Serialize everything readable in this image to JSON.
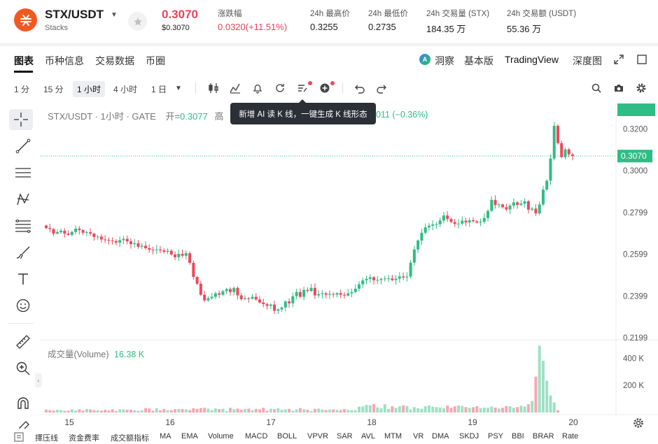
{
  "header": {
    "logo_icon": "stacks-logo-icon",
    "pair": "STX/USDT",
    "pair_sub": "Stacks",
    "price": "0.3070",
    "price_usd": "$0.3070",
    "stats": [
      {
        "label": "涨跌幅",
        "value": "0.0320(+11.51%)",
        "red": true
      },
      {
        "label": "24h 最高价",
        "value": "0.3255"
      },
      {
        "label": "24h 最低价",
        "value": "0.2735"
      },
      {
        "label": "24h 交易量 (STX)",
        "value": "184.35 万"
      },
      {
        "label": "24h 交易额 (USDT)",
        "value": "55.36 万"
      }
    ]
  },
  "tabs": {
    "left": [
      "图表",
      "币种信息",
      "交易数据",
      "币圈"
    ],
    "active": "图表",
    "right": [
      {
        "label": "洞察",
        "icon": "ai-icon"
      },
      {
        "label": "基本版"
      },
      {
        "label": "TradingView"
      },
      {
        "label": "深度图"
      }
    ]
  },
  "toolbar": {
    "timeframes": [
      "1 分",
      "15 分",
      "1 小时",
      "4 小时",
      "1 日"
    ],
    "active_tf": "1 小时"
  },
  "chart": {
    "legend_pair": "STX/USDT · 1小时 · GATE",
    "legend_open_label": "开=",
    "legend_open_value": "0.3077",
    "legend_high_label": "高",
    "legend_change": "011 (−0.36%)",
    "tooltip": "新增 AI 读 K 线，一键生成 K 线形态",
    "current_price": "0.3070",
    "volume_legend_label": "成交量(Volume)",
    "volume_legend_value": "16.38 K",
    "volume_current": "16.38 K",
    "price_ticks": [
      "0.3200",
      "0.3000",
      "0.2799",
      "0.2599",
      "0.2399",
      "0.2199"
    ],
    "volume_ticks": [
      "400 K",
      "200 K"
    ],
    "x_ticks": [
      "15",
      "16",
      "17",
      "18",
      "19",
      "20"
    ],
    "colors": {
      "up": "#2ebd85",
      "down": "#f0475a",
      "accent": "#f05a22"
    }
  },
  "indicators": [
    "擇压线",
    "资金费率",
    "成交额指标",
    "MA",
    "EMA",
    "Volume",
    "MACD",
    "BOLL",
    "VPVR",
    "SAR",
    "AVL",
    "MTM",
    "VR",
    "DMA",
    "SKDJ",
    "PSY",
    "BBI",
    "BRAR",
    "Rate"
  ],
  "chart_data": {
    "type": "candlestick",
    "title": "STX/USDT · 1小时 · GATE",
    "x_labels": [
      "15",
      "16",
      "17",
      "18",
      "19",
      "20"
    ],
    "ylim": [
      0.2199,
      0.3255
    ],
    "y_ticks": [
      0.32,
      0.3,
      0.2799,
      0.2599,
      0.2399,
      0.2199
    ],
    "close_series": [
      0.2725,
      0.272,
      0.2698,
      0.2705,
      0.2712,
      0.2698,
      0.2692,
      0.2706,
      0.2722,
      0.2715,
      0.2702,
      0.2705,
      0.2698,
      0.2682,
      0.2684,
      0.267,
      0.2668,
      0.2665,
      0.2662,
      0.2655,
      0.2667,
      0.2673,
      0.2661,
      0.2648,
      0.2652,
      0.2635,
      0.264,
      0.2628,
      0.2621,
      0.262,
      0.2622,
      0.2618,
      0.2611,
      0.2616,
      0.2598,
      0.2585,
      0.2601,
      0.2592,
      0.2604,
      0.2558,
      0.249,
      0.2458,
      0.2405,
      0.2378,
      0.2388,
      0.2395,
      0.2412,
      0.2405,
      0.2422,
      0.2432,
      0.2418,
      0.2438,
      0.2402,
      0.2384,
      0.2388,
      0.2386,
      0.2395,
      0.2382,
      0.2368,
      0.236,
      0.2352,
      0.2358,
      0.2328,
      0.2335,
      0.2344,
      0.2373,
      0.2364,
      0.2398,
      0.2418,
      0.2395,
      0.2428,
      0.2423,
      0.2438,
      0.2402,
      0.2408,
      0.2412,
      0.2405,
      0.2409,
      0.2406,
      0.2413,
      0.2405,
      0.2401,
      0.2412,
      0.2418,
      0.2434,
      0.2455,
      0.2474,
      0.2481,
      0.2489,
      0.2475,
      0.2476,
      0.2481,
      0.2483,
      0.2483,
      0.2475,
      0.2482,
      0.2493,
      0.2488,
      0.2492,
      0.2559,
      0.2622,
      0.2665,
      0.2702,
      0.2728,
      0.2736,
      0.2742,
      0.2743,
      0.2761,
      0.2785,
      0.2768,
      0.2754,
      0.2745,
      0.2746,
      0.276,
      0.2752,
      0.2762,
      0.2757,
      0.2751,
      0.2755,
      0.2773,
      0.2807,
      0.286,
      0.2835,
      0.2838,
      0.2825,
      0.2814,
      0.2832,
      0.2848,
      0.2836,
      0.2842,
      0.2853,
      0.2813,
      0.2818,
      0.2795,
      0.2838,
      0.2909,
      0.2952,
      0.3058,
      0.3215,
      0.3132,
      0.3065,
      0.3102,
      0.3078,
      0.307
    ],
    "volume_series": [
      22,
      18,
      15,
      21,
      18,
      12,
      14,
      23,
      15,
      24,
      15,
      26,
      23,
      18,
      17,
      15,
      20,
      15,
      24,
      11,
      24,
      22,
      21,
      21,
      16,
      12,
      17,
      33,
      30,
      13,
      32,
      16,
      27,
      17,
      18,
      25,
      27,
      26,
      24,
      18,
      32,
      27,
      33,
      35,
      29,
      18,
      31,
      26,
      28,
      11,
      35,
      24,
      29,
      21,
      27,
      29,
      16,
      27,
      23,
      35,
      13,
      28,
      25,
      31,
      21,
      23,
      27,
      14,
      23,
      33,
      24,
      20,
      11,
      27,
      29,
      22,
      19,
      22,
      24,
      20,
      19,
      26,
      19,
      18,
      17,
      43,
      45,
      56,
      53,
      63,
      38,
      32,
      61,
      27,
      46,
      35,
      46,
      53,
      48,
      22,
      40,
      32,
      28,
      47,
      52,
      43,
      40,
      37,
      32,
      52,
      35,
      46,
      52,
      49,
      40,
      34,
      40,
      47,
      32,
      37,
      35,
      44,
      37,
      29,
      35,
      48,
      46,
      35,
      40,
      50,
      44,
      61,
      86,
      265,
      493,
      382,
      235,
      126,
      75,
      16.38
    ],
    "volume_ylim": [
      0,
      500
    ]
  }
}
